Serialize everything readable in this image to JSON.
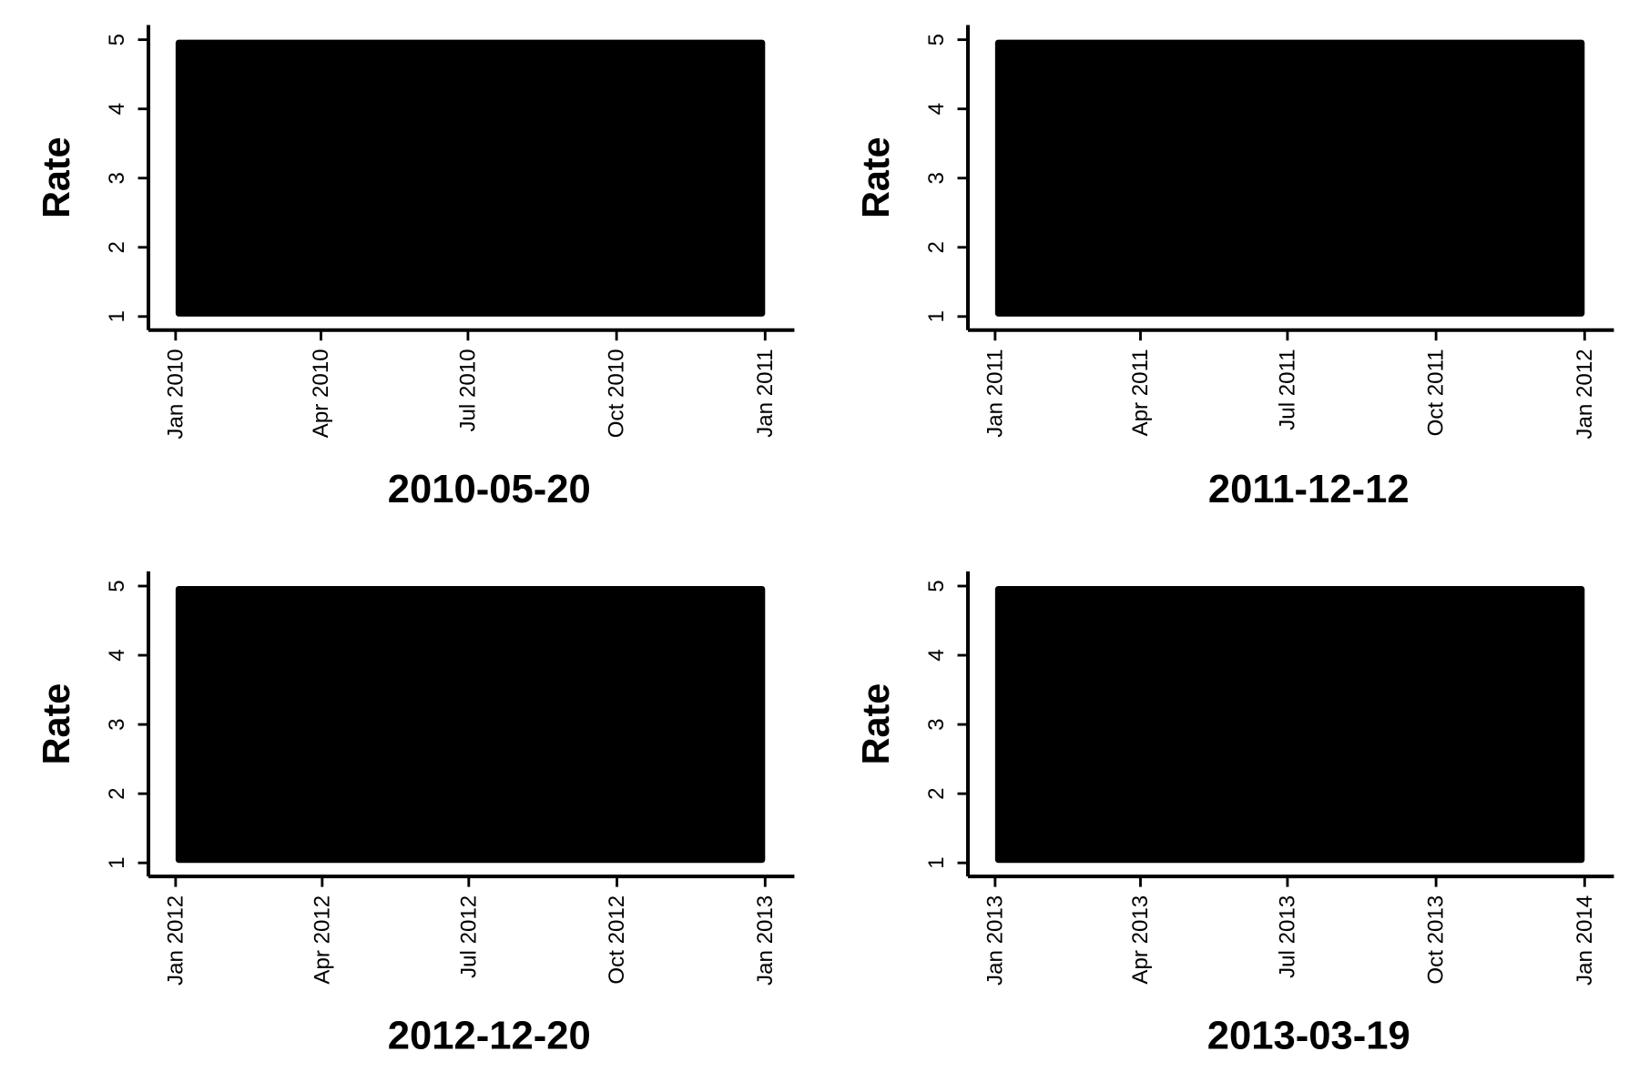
{
  "colors": {
    "data_mark": "#000000",
    "axis": "#000000",
    "background": "#ffffff"
  },
  "chart_data": [
    {
      "type": "scatter",
      "title": "2010-05-20",
      "ylabel": "Rate",
      "xlabel": "",
      "xlim": [
        "2010-01-01",
        "2011-01-01"
      ],
      "ylim": [
        1,
        5
      ],
      "x_ticks": [
        {
          "value": "2010-01-01",
          "label": "Jan 2010"
        },
        {
          "value": "2010-04-01",
          "label": "Apr 2010"
        },
        {
          "value": "2010-07-01",
          "label": "Jul 2010"
        },
        {
          "value": "2010-10-01",
          "label": "Oct 2010"
        },
        {
          "value": "2011-01-01",
          "label": "Jan 2011"
        }
      ],
      "y_ticks": [
        1,
        2,
        3,
        4,
        5
      ],
      "grid": false,
      "points_region": {
        "x": [
          "2010-01-01",
          "2011-01-01"
        ],
        "y": [
          1,
          5
        ]
      }
    },
    {
      "type": "scatter",
      "title": "2011-12-12",
      "ylabel": "Rate",
      "xlabel": "",
      "xlim": [
        "2011-01-01",
        "2012-01-01"
      ],
      "ylim": [
        1,
        5
      ],
      "x_ticks": [
        {
          "value": "2011-01-01",
          "label": "Jan 2011"
        },
        {
          "value": "2011-04-01",
          "label": "Apr 2011"
        },
        {
          "value": "2011-07-01",
          "label": "Jul 2011"
        },
        {
          "value": "2011-10-01",
          "label": "Oct 2011"
        },
        {
          "value": "2012-01-01",
          "label": "Jan 2012"
        }
      ],
      "y_ticks": [
        1,
        2,
        3,
        4,
        5
      ],
      "grid": false,
      "points_region": {
        "x": [
          "2011-01-01",
          "2012-01-01"
        ],
        "y": [
          1,
          5
        ]
      }
    },
    {
      "type": "scatter",
      "title": "2012-12-20",
      "ylabel": "Rate",
      "xlabel": "",
      "xlim": [
        "2012-01-01",
        "2013-01-01"
      ],
      "ylim": [
        1,
        5
      ],
      "x_ticks": [
        {
          "value": "2012-01-01",
          "label": "Jan 2012"
        },
        {
          "value": "2012-04-01",
          "label": "Apr 2012"
        },
        {
          "value": "2012-07-01",
          "label": "Jul 2012"
        },
        {
          "value": "2012-10-01",
          "label": "Oct 2012"
        },
        {
          "value": "2013-01-01",
          "label": "Jan 2013"
        }
      ],
      "y_ticks": [
        1,
        2,
        3,
        4,
        5
      ],
      "grid": false,
      "points_region": {
        "x": [
          "2012-01-01",
          "2013-01-01"
        ],
        "y": [
          1,
          5
        ]
      }
    },
    {
      "type": "scatter",
      "title": "2013-03-19",
      "ylabel": "Rate",
      "xlabel": "",
      "xlim": [
        "2013-01-01",
        "2014-01-01"
      ],
      "ylim": [
        1,
        5
      ],
      "x_ticks": [
        {
          "value": "2013-01-01",
          "label": "Jan 2013"
        },
        {
          "value": "2013-04-01",
          "label": "Apr 2013"
        },
        {
          "value": "2013-07-01",
          "label": "Jul 2013"
        },
        {
          "value": "2013-10-01",
          "label": "Oct 2013"
        },
        {
          "value": "2014-01-01",
          "label": "Jan 2014"
        }
      ],
      "y_ticks": [
        1,
        2,
        3,
        4,
        5
      ],
      "grid": false,
      "points_region": {
        "x": [
          "2013-01-01",
          "2014-01-01"
        ],
        "y": [
          1,
          5
        ]
      }
    }
  ]
}
